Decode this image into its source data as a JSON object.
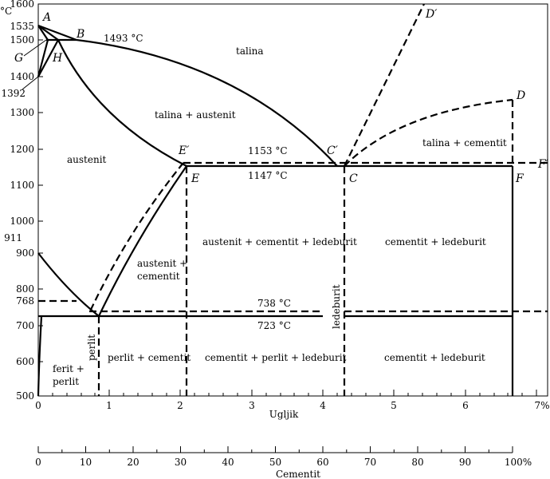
{
  "units": {
    "temperature": "°C",
    "carbon": "%"
  },
  "y_ticks": [
    "1600",
    "1535",
    "1500",
    "1400",
    "1392",
    "1300",
    "1200",
    "1100",
    "1000",
    "911",
    "900",
    "800",
    "768",
    "700",
    "600",
    "500"
  ],
  "x_ticks": [
    "0",
    "1",
    "2",
    "3",
    "4",
    "5",
    "6",
    "7%"
  ],
  "x_label": "Ugljik",
  "c2_ticks": [
    "0",
    "10",
    "20",
    "30",
    "40",
    "50",
    "60",
    "70",
    "80",
    "90",
    "100%"
  ],
  "c2_label": "Cementit",
  "points": {
    "A": "A",
    "B": "B",
    "G": "G",
    "H": "H",
    "E_prime": "E′",
    "E": "E",
    "C_prime": "C′",
    "C": "C",
    "D_prime": "D′",
    "D": "D",
    "F_prime": "F′",
    "F": "F"
  },
  "temps": {
    "t1493": "1493 °C",
    "t1153": "1153 °C",
    "t1147": "1147 °C",
    "t738": "738 °C",
    "t723": "723 °C"
  },
  "regions": {
    "talina": "talina",
    "talina_austenit": "talina + austenit",
    "talina_cementit": "talina + cementit",
    "austenit": "austenit",
    "austenit_cementit_1": "austenit +",
    "austenit_cementit_2": "cementit",
    "aus_cem_led": "austenit + cementit + ledeburit",
    "cem_led_top": "cementit + ledeburit",
    "ferit_perlit_1": "ferit +",
    "ferit_perlit_2": "perlit",
    "perlit": "perlit",
    "perlit_cementit": "perlit + cementit",
    "cem_perl_led": "cementit + perlit + ledeburit",
    "cem_led_bottom": "cementit + ledeburit",
    "ledeburit": "ledeburit"
  }
}
